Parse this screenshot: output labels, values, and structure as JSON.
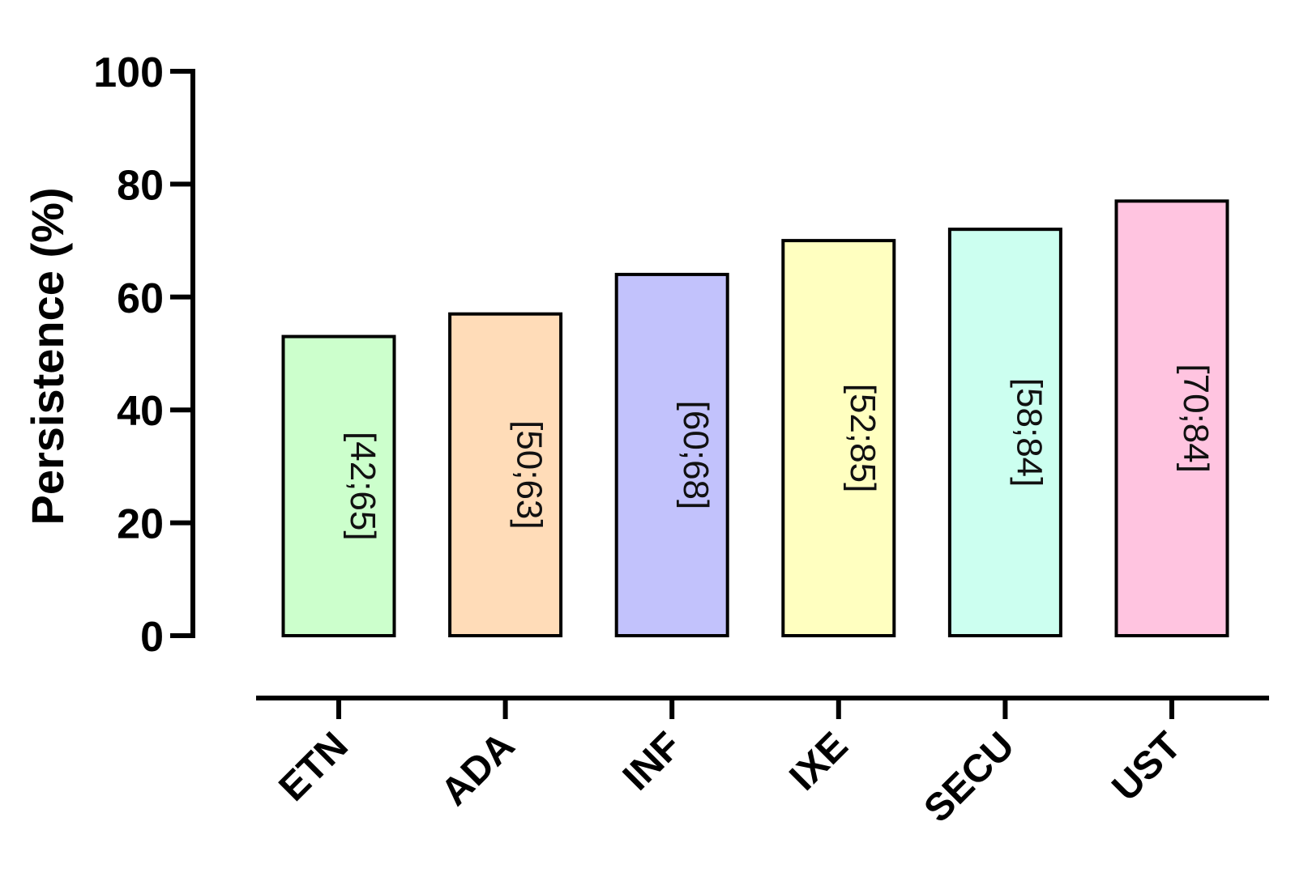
{
  "chart_data": {
    "type": "bar",
    "title": "",
    "xlabel": "",
    "ylabel": "Persistence (%)",
    "ylim": [
      0,
      100
    ],
    "yticks": [
      "0",
      "20",
      "40",
      "60",
      "80",
      "100"
    ],
    "grid": false,
    "categories": [
      "ETN",
      "ADA",
      "INF",
      "IXE",
      "SECU",
      "UST"
    ],
    "values": [
      53,
      57,
      64,
      70,
      72,
      77
    ],
    "data_labels": [
      "[42;65]",
      "[50;63]",
      "[60;68]",
      "[52;85]",
      "[58;84]",
      "[70;84]"
    ],
    "colors": [
      "#ccffcc",
      "#ffdcb8",
      "#c2c2fc",
      "#ffffc0",
      "#ccfff0",
      "#ffc4e0"
    ]
  }
}
